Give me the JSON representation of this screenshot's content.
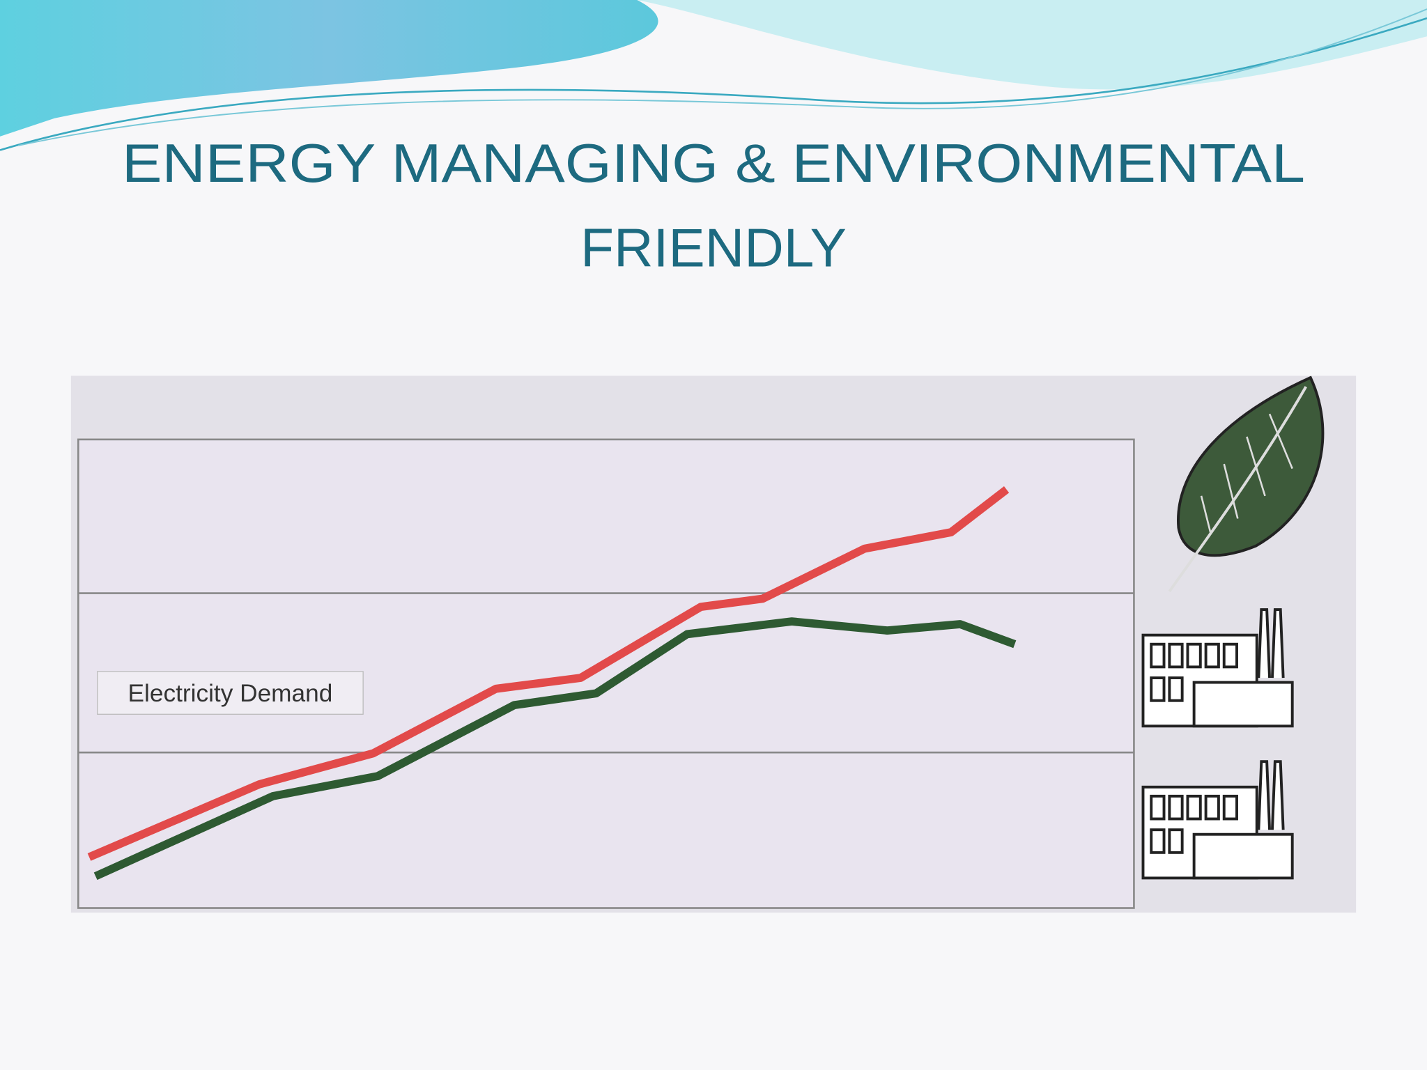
{
  "slide": {
    "title_lines": [
      "ENERGY MANAGING & ENVIRONMENTAL",
      "FRIENDLY"
    ],
    "chart_label": "Electricity Demand"
  }
}
